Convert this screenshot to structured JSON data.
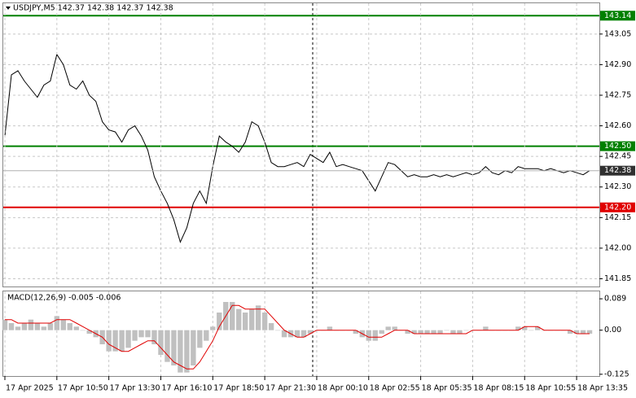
{
  "chart_data": [
    {
      "type": "line",
      "title": "USDJPY,M5  142.37 142.38 142.37 142.38",
      "xlim": [
        -0.25,
        91.5
      ],
      "ylim": [
        141.812,
        143.201
      ],
      "yticks": [
        143.05,
        {
          "value": 142.9,
          "label": "142.90"
        },
        142.75,
        {
          "value": 142.6,
          "label": "142.60"
        },
        142.45,
        {
          "value": 142.3,
          "label": "142.30"
        },
        142.15,
        {
          "value": 142.0,
          "label": "142.00"
        },
        141.85
      ],
      "grid": true,
      "levels": [
        {
          "value": 143.14,
          "label": "143.14",
          "color": "#008000"
        },
        {
          "value": 142.5,
          "label": "142.50",
          "color": "#008000"
        },
        {
          "value": 142.2,
          "label": "142.20",
          "color": "#e00000"
        }
      ],
      "series": [
        {
          "name": "USDJPY",
          "color": "#000000",
          "values": [
            142.55,
            142.85,
            142.87,
            142.82,
            142.78,
            142.74,
            142.8,
            142.82,
            142.95,
            142.9,
            142.8,
            142.78,
            142.82,
            142.75,
            142.72,
            142.62,
            142.58,
            142.57,
            142.52,
            142.58,
            142.6,
            142.55,
            142.48,
            142.35,
            142.28,
            142.22,
            142.14,
            142.03,
            142.1,
            142.22,
            142.28,
            142.22,
            142.4,
            142.55,
            142.52,
            142.5,
            142.47,
            142.52,
            142.62,
            142.6,
            142.52,
            142.42,
            142.4,
            142.4,
            142.41,
            142.42,
            142.4,
            142.46,
            142.44,
            142.42,
            142.47,
            142.4,
            142.41,
            142.4,
            142.39,
            142.38,
            142.33,
            142.28,
            142.35,
            142.42,
            142.41,
            142.38,
            142.35,
            142.36,
            142.35,
            142.35,
            142.36,
            142.35,
            142.36,
            142.35,
            142.36,
            142.37,
            142.36,
            142.37,
            142.4,
            142.37,
            142.36,
            142.38,
            142.37,
            142.4,
            142.39,
            142.39,
            142.39,
            142.38,
            142.39,
            142.38,
            142.37,
            142.38,
            142.37,
            142.36,
            142.38
          ]
        }
      ]
    },
    {
      "type": "combo",
      "title": "MACD(12,26,9) -0.005 -0.006",
      "xlim": [
        -0.25,
        91.5
      ],
      "ylim": [
        -0.13,
        0.11
      ],
      "yticks": [
        0.089,
        {
          "value": 0,
          "label": "0.00"
        },
        -0.125
      ],
      "xticks": [
        {
          "value": 0,
          "label": "17 Apr 2025"
        },
        {
          "value": 8,
          "label": "17 Apr 10:50"
        },
        {
          "value": 16,
          "label": "17 Apr 13:30"
        },
        {
          "value": 24,
          "label": "17 Apr 16:10"
        },
        {
          "value": 32,
          "label": "17 Apr 18:50"
        },
        {
          "value": 40,
          "label": "17 Apr 21:30"
        },
        {
          "value": 48,
          "label": "18 Apr 00:10"
        },
        {
          "value": 56,
          "label": "18 Apr 02:55"
        },
        {
          "value": 64,
          "label": "18 Apr 05:35"
        },
        {
          "value": 72,
          "label": "18 Apr 08:15"
        },
        {
          "value": 80,
          "label": "18 Apr 10:55"
        },
        {
          "value": 88,
          "label": "18 Apr 13:35"
        }
      ],
      "series": [
        {
          "name": "MACD",
          "type": "bar",
          "color": "#c0c0c0",
          "values": [
            0.03,
            0.02,
            0.01,
            0.02,
            0.03,
            0.02,
            0.01,
            0.02,
            0.04,
            0.03,
            0.02,
            0.01,
            0.0,
            -0.01,
            -0.02,
            -0.04,
            -0.06,
            -0.06,
            -0.06,
            -0.05,
            -0.03,
            -0.02,
            -0.02,
            -0.04,
            -0.07,
            -0.09,
            -0.1,
            -0.12,
            -0.12,
            -0.1,
            -0.05,
            -0.03,
            0.01,
            0.05,
            0.08,
            0.08,
            0.06,
            0.05,
            0.06,
            0.07,
            0.05,
            0.02,
            0.0,
            -0.02,
            -0.02,
            -0.02,
            -0.02,
            -0.01,
            0.0,
            0.0,
            0.01,
            0.0,
            0.0,
            0.0,
            -0.01,
            -0.02,
            -0.03,
            -0.03,
            -0.01,
            0.01,
            0.01,
            0.0,
            -0.01,
            -0.01,
            -0.01,
            -0.01,
            -0.01,
            -0.01,
            0.0,
            -0.01,
            -0.01,
            0.0,
            0.0,
            0.0,
            0.01,
            0.0,
            0.0,
            0.0,
            0.0,
            0.01,
            0.01,
            0.0,
            0.01,
            0.0,
            0.0,
            0.0,
            0.0,
            -0.01,
            -0.01,
            -0.01,
            -0.01
          ]
        },
        {
          "name": "Signal",
          "type": "line",
          "color": "#e00000",
          "values": [
            0.03,
            0.03,
            0.02,
            0.02,
            0.02,
            0.02,
            0.02,
            0.02,
            0.03,
            0.03,
            0.03,
            0.02,
            0.01,
            0.0,
            -0.01,
            -0.02,
            -0.04,
            -0.05,
            -0.06,
            -0.06,
            -0.05,
            -0.04,
            -0.03,
            -0.03,
            -0.05,
            -0.07,
            -0.09,
            -0.1,
            -0.11,
            -0.11,
            -0.09,
            -0.06,
            -0.03,
            0.01,
            0.04,
            0.07,
            0.07,
            0.06,
            0.06,
            0.06,
            0.06,
            0.04,
            0.02,
            0.0,
            -0.01,
            -0.02,
            -0.02,
            -0.01,
            0.0,
            0.0,
            0.0,
            0.0,
            0.0,
            0.0,
            0.0,
            -0.01,
            -0.02,
            -0.02,
            -0.02,
            -0.01,
            0.0,
            0.0,
            0.0,
            -0.01,
            -0.01,
            -0.01,
            -0.01,
            -0.01,
            -0.01,
            -0.01,
            -0.01,
            -0.01,
            0.0,
            0.0,
            0.0,
            0.0,
            0.0,
            0.0,
            0.0,
            0.0,
            0.01,
            0.01,
            0.01,
            0.0,
            0.0,
            0.0,
            0.0,
            0.0,
            -0.01,
            -0.01,
            -0.01
          ]
        }
      ]
    }
  ]
}
